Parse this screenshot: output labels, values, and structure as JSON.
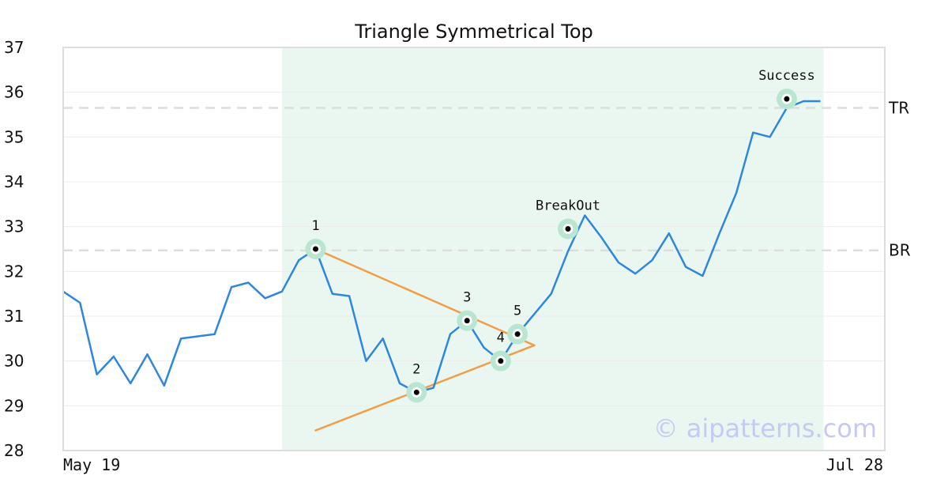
{
  "chart_data": {
    "type": "line",
    "title": "Triangle Symmetrical Top",
    "xlabel": "",
    "ylabel": "",
    "x_tick_labels": [
      "May 19",
      "Jul 28"
    ],
    "ylim": [
      28,
      37
    ],
    "yticks": [
      28,
      29,
      30,
      31,
      32,
      33,
      34,
      35,
      36,
      37
    ],
    "grid": true,
    "colors": {
      "price": "#2e86de",
      "trendline": "#f39c43",
      "highlight": "#eaf7f1",
      "marker_halo": "#b8e6d0",
      "reference": "#dddddd"
    },
    "series": [
      {
        "values": [
          31.55,
          31.3,
          29.7,
          30.1,
          29.5,
          30.15,
          29.45,
          30.5,
          30.55,
          30.6,
          31.65,
          31.75,
          31.4,
          31.55,
          32.25,
          32.5,
          31.5,
          31.45,
          30.0,
          30.5,
          29.5,
          29.3,
          29.4,
          30.6,
          30.9,
          30.3,
          30.0,
          30.6,
          31.05,
          31.5,
          32.45,
          33.25,
          32.75,
          32.2,
          31.95,
          32.25,
          32.85,
          32.1,
          31.9,
          32.85,
          33.75,
          35.1,
          35.0,
          35.65,
          35.8,
          35.8
        ]
      }
    ],
    "highlight_range": {
      "from_index": 13,
      "to_index": 45
    },
    "trendlines": [
      {
        "from": [
          15,
          32.5
        ],
        "to": [
          28,
          30.35
        ]
      },
      {
        "from": [
          15,
          28.45
        ],
        "to": [
          28,
          30.35
        ]
      }
    ],
    "reference_lines": [
      {
        "label": "TR",
        "y": 35.65
      },
      {
        "label": "BR",
        "y": 32.47
      }
    ],
    "points": [
      {
        "label": "1",
        "x": 15,
        "y": 32.5,
        "label_pos": "above"
      },
      {
        "label": "2",
        "x": 21,
        "y": 29.3,
        "label_pos": "above"
      },
      {
        "label": "3",
        "x": 24,
        "y": 30.9,
        "label_pos": "above"
      },
      {
        "label": "4",
        "x": 26,
        "y": 30.0,
        "label_pos": "above"
      },
      {
        "label": "5",
        "x": 27,
        "y": 30.6,
        "label_pos": "above"
      },
      {
        "label": "BreakOut",
        "x": 30,
        "y": 32.95,
        "label_pos": "above"
      },
      {
        "label": "Success",
        "x": 43,
        "y": 35.85,
        "label_pos": "above"
      }
    ]
  },
  "watermark": "© aipatterns.com"
}
